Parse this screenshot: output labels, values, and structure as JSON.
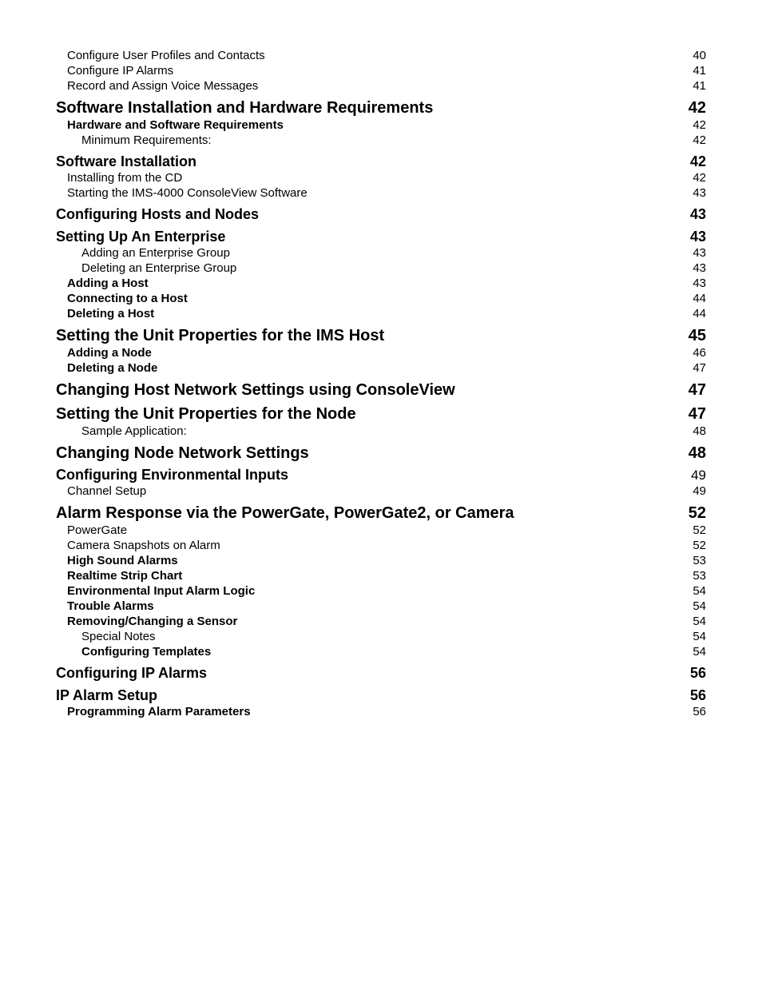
{
  "toc": [
    {
      "label": "Configure User Profiles and Contacts",
      "page": "40",
      "level": "b"
    },
    {
      "label": "Configure IP Alarms",
      "page": "41",
      "level": "b"
    },
    {
      "label": "Record and Assign Voice Messages",
      "page": "41",
      "level": "b"
    },
    {
      "label": "Software Installation and Hardware Requirements",
      "page": "42",
      "level": "h1"
    },
    {
      "label": "Hardware and Software Requirements",
      "page": "42",
      "level": "h3"
    },
    {
      "label": "Minimum Requirements:",
      "page": "42",
      "level": "c"
    },
    {
      "label": "Software Installation",
      "page": "42",
      "level": "h2"
    },
    {
      "label": "Installing from the CD",
      "page": "42",
      "level": "b"
    },
    {
      "label": "Starting the IMS-4000 ConsoleView Software",
      "page": "43",
      "level": "b"
    },
    {
      "label": "Configuring Hosts and Nodes",
      "page": "43",
      "level": "h2"
    },
    {
      "label": "Setting Up An Enterprise",
      "page": "43",
      "level": "h2"
    },
    {
      "label": "Adding an Enterprise Group",
      "page": "43",
      "level": "c"
    },
    {
      "label": "Deleting an Enterprise Group",
      "page": "43",
      "level": "c"
    },
    {
      "label": "Adding a Host",
      "page": "43",
      "level": "h3"
    },
    {
      "label": "Connecting to a Host",
      "page": "44",
      "level": "h3"
    },
    {
      "label": "Deleting a Host",
      "page": "44",
      "level": "h3"
    },
    {
      "label": "Setting the Unit Properties for the IMS Host",
      "page": "45",
      "level": "h1"
    },
    {
      "label": "Adding a Node",
      "page": "46",
      "level": "h3"
    },
    {
      "label": "Deleting a Node",
      "page": "47",
      "level": "h3"
    },
    {
      "label": "Changing Host Network Settings using ConsoleView",
      "page": "47",
      "level": "h1"
    },
    {
      "label": "Setting the Unit Properties for the Node",
      "page": "47",
      "level": "h1"
    },
    {
      "label": "Sample Application:",
      "page": "48",
      "level": "c"
    },
    {
      "label": "Changing Node Network Settings",
      "page": "48",
      "level": "h1"
    },
    {
      "label": "Configuring Environmental Inputs",
      "page": "49",
      "level": "h2b"
    },
    {
      "label": "Channel Setup",
      "page": "49",
      "level": "b"
    },
    {
      "label": "Alarm Response via the PowerGate, PowerGate2, or Camera",
      "page": "52",
      "level": "h1"
    },
    {
      "label": "PowerGate",
      "page": "52",
      "level": "b"
    },
    {
      "label": "Camera Snapshots on Alarm",
      "page": "52",
      "level": "b"
    },
    {
      "label": "High Sound Alarms",
      "page": "53",
      "level": "h3"
    },
    {
      "label": "Realtime Strip Chart",
      "page": "53",
      "level": "h3"
    },
    {
      "label": "Environmental Input Alarm Logic",
      "page": "54",
      "level": "h3"
    },
    {
      "label": "Trouble Alarms",
      "page": "54",
      "level": "h3"
    },
    {
      "label": "Removing/Changing a Sensor",
      "page": "54",
      "level": "h3"
    },
    {
      "label": "Special Notes",
      "page": "54",
      "level": "c"
    },
    {
      "label": "Configuring Templates",
      "page": "54",
      "level": "h3b"
    },
    {
      "label": "Configuring IP Alarms",
      "page": "56",
      "level": "h2"
    },
    {
      "label": "IP Alarm Setup",
      "page": "56",
      "level": "h2"
    },
    {
      "label": "Programming Alarm Parameters",
      "page": "56",
      "level": "h3"
    }
  ],
  "styles": {
    "text_color": "#000000",
    "background_color": "#ffffff"
  }
}
